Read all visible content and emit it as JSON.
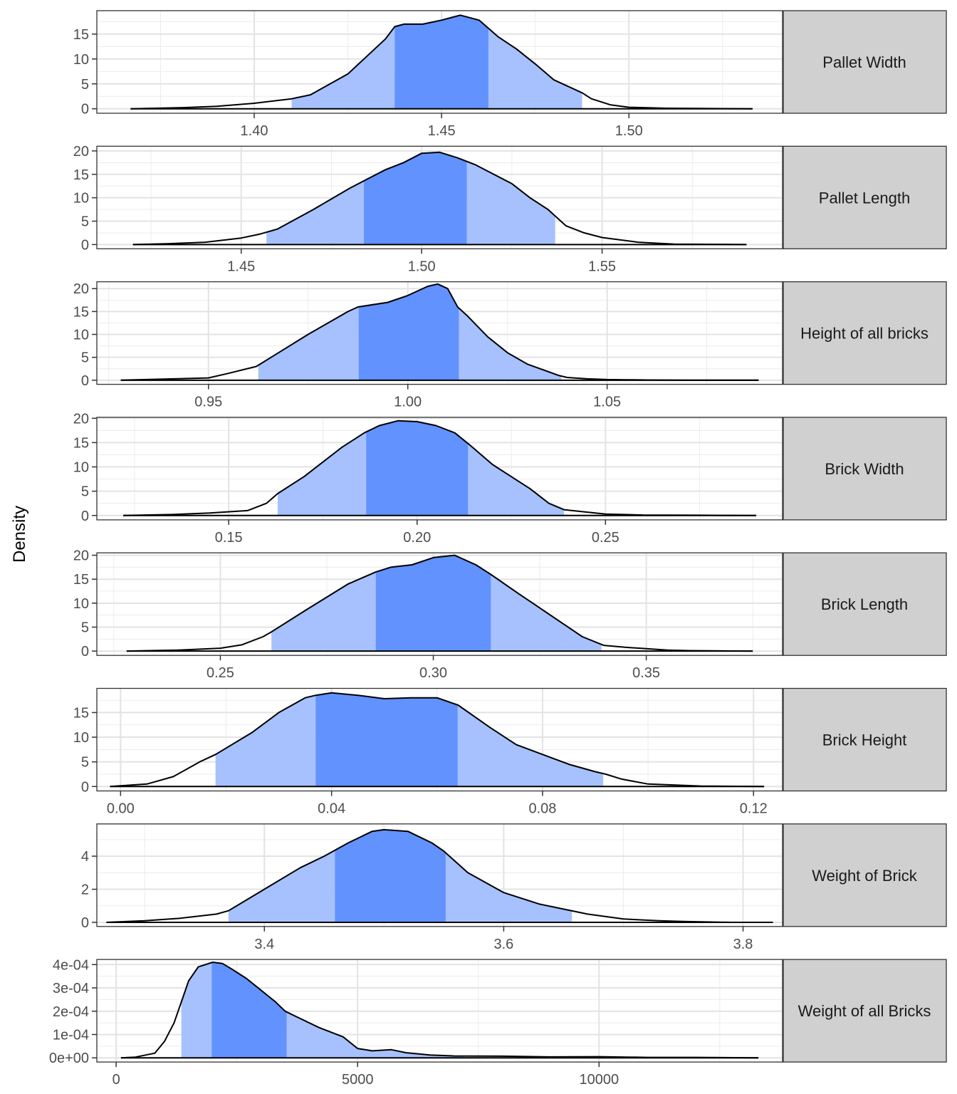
{
  "figure": {
    "ylabel": "Density"
  },
  "chart_data": [
    {
      "type": "area",
      "panel": "Pallet Width",
      "x": [
        1.367,
        1.38,
        1.39,
        1.4,
        1.41,
        1.415,
        1.425,
        1.43,
        1.435,
        1.4375,
        1.44,
        1.445,
        1.45,
        1.455,
        1.46,
        1.462,
        1.465,
        1.47,
        1.475,
        1.48,
        1.4875,
        1.49,
        1.495,
        1.5,
        1.51,
        1.533
      ],
      "y": [
        0.0,
        0.2,
        0.5,
        1.1,
        2.0,
        2.8,
        7.0,
        10.5,
        14.0,
        16.5,
        17.0,
        17.0,
        17.8,
        18.8,
        17.8,
        16.5,
        14.5,
        12.0,
        9.0,
        5.8,
        3.2,
        2.0,
        0.8,
        0.3,
        0.1,
        0.0
      ],
      "ci_outer": [
        1.41,
        1.4875
      ],
      "ci_inner": [
        1.4375,
        1.4625
      ],
      "xticks": [
        "1.40",
        "1.45",
        "1.50"
      ],
      "xlim": [
        1.358,
        1.541
      ],
      "yticks": [
        "0",
        "5",
        "10",
        "15"
      ],
      "ylim": [
        -0.9,
        19.7
      ]
    },
    {
      "type": "area",
      "panel": "Pallet Length",
      "x": [
        1.42,
        1.43,
        1.44,
        1.45,
        1.455,
        1.46,
        1.47,
        1.48,
        1.485,
        1.49,
        1.495,
        1.5,
        1.505,
        1.51,
        1.515,
        1.52,
        1.525,
        1.53,
        1.535,
        1.54,
        1.545,
        1.55,
        1.56,
        1.57,
        1.59
      ],
      "y": [
        0.0,
        0.2,
        0.5,
        1.4,
        2.2,
        3.3,
        7.5,
        12.0,
        14.0,
        16.0,
        17.5,
        19.5,
        19.7,
        18.5,
        17.0,
        15.0,
        13.0,
        10.0,
        7.5,
        4.0,
        2.5,
        1.5,
        0.5,
        0.1,
        0.0
      ],
      "ci_outer": [
        1.457,
        1.537
      ],
      "ci_inner": [
        1.484,
        1.5125
      ],
      "xticks": [
        "1.45",
        "1.50",
        "1.55"
      ],
      "xlim": [
        1.41,
        1.6
      ],
      "yticks": [
        "0",
        "5",
        "10",
        "15",
        "20"
      ],
      "ylim": [
        -0.9,
        21.0
      ]
    },
    {
      "type": "area",
      "panel": "Height of all bricks",
      "x": [
        0.928,
        0.95,
        0.955,
        0.962,
        0.975,
        0.985,
        0.9875,
        0.995,
        1.0,
        1.005,
        1.0075,
        1.01,
        1.0125,
        1.015,
        1.02,
        1.025,
        1.03,
        1.038,
        1.04,
        1.045,
        1.05,
        1.055,
        1.06,
        1.07,
        1.088
      ],
      "y": [
        0.0,
        0.5,
        1.5,
        3.0,
        10.0,
        15.0,
        16.0,
        17.0,
        18.5,
        20.5,
        21.0,
        20.0,
        16.0,
        14.0,
        9.5,
        6.0,
        3.5,
        1.0,
        0.6,
        0.3,
        0.15,
        0.1,
        0.05,
        0.0,
        0.0
      ],
      "ci_outer": [
        0.9625,
        1.0385
      ],
      "ci_inner": [
        0.9877,
        1.0128
      ],
      "xticks": [
        "0.95",
        "1.00",
        "1.05"
      ],
      "xlim": [
        0.922,
        1.094
      ],
      "yticks": [
        "0",
        "5",
        "10",
        "15",
        "20"
      ],
      "ylim": [
        -0.9,
        21.5
      ]
    },
    {
      "type": "area",
      "panel": "Brick Width",
      "x": [
        0.122,
        0.135,
        0.145,
        0.155,
        0.16,
        0.163,
        0.17,
        0.18,
        0.186,
        0.19,
        0.195,
        0.2,
        0.205,
        0.21,
        0.214,
        0.22,
        0.225,
        0.23,
        0.235,
        0.239,
        0.245,
        0.25,
        0.26,
        0.275,
        0.29
      ],
      "y": [
        0.0,
        0.2,
        0.5,
        1.0,
        2.5,
        4.5,
        8.0,
        14.0,
        17.0,
        18.5,
        19.5,
        19.3,
        18.5,
        17.0,
        14.5,
        10.5,
        8.0,
        5.5,
        2.5,
        1.2,
        0.7,
        0.3,
        0.1,
        0.05,
        0.0
      ],
      "ci_outer": [
        0.163,
        0.239
      ],
      "ci_inner": [
        0.1865,
        0.2135
      ],
      "xticks": [
        "0.15",
        "0.20",
        "0.25"
      ],
      "xlim": [
        0.115,
        0.297
      ],
      "yticks": [
        "0",
        "5",
        "10",
        "15",
        "20"
      ],
      "ylim": [
        -0.9,
        20.2
      ]
    },
    {
      "type": "area",
      "panel": "Brick Length",
      "x": [
        0.228,
        0.24,
        0.25,
        0.255,
        0.26,
        0.262,
        0.27,
        0.28,
        0.2865,
        0.29,
        0.295,
        0.3,
        0.305,
        0.31,
        0.3135,
        0.32,
        0.325,
        0.33,
        0.335,
        0.34,
        0.345,
        0.35,
        0.355,
        0.36,
        0.375
      ],
      "y": [
        0.0,
        0.2,
        0.6,
        1.3,
        3.0,
        4.0,
        8.5,
        14.0,
        16.5,
        17.5,
        18.0,
        19.5,
        20.0,
        18.0,
        16.0,
        12.0,
        9.0,
        6.0,
        3.0,
        1.2,
        0.8,
        0.5,
        0.2,
        0.1,
        0.0
      ],
      "ci_outer": [
        0.262,
        0.3395
      ],
      "ci_inner": [
        0.2865,
        0.3135
      ],
      "xticks": [
        "0.25",
        "0.30",
        "0.35"
      ],
      "xlim": [
        0.221,
        0.382
      ],
      "yticks": [
        "0",
        "5",
        "10",
        "15",
        "20"
      ],
      "ylim": [
        -0.9,
        20.5
      ]
    },
    {
      "type": "area",
      "panel": "Brick Height",
      "x": [
        -0.002,
        0.005,
        0.01,
        0.015,
        0.018,
        0.025,
        0.03,
        0.035,
        0.037,
        0.04,
        0.045,
        0.05,
        0.055,
        0.06,
        0.064,
        0.07,
        0.075,
        0.08,
        0.085,
        0.09,
        0.092,
        0.095,
        0.1,
        0.11,
        0.122
      ],
      "y": [
        0.0,
        0.5,
        2.0,
        5.0,
        6.5,
        11.0,
        15.0,
        18.0,
        18.5,
        19.0,
        18.5,
        17.8,
        18.0,
        18.0,
        16.5,
        12.0,
        8.5,
        6.5,
        4.5,
        3.0,
        2.5,
        1.5,
        0.5,
        0.1,
        0.0
      ],
      "ci_outer": [
        0.018,
        0.0915
      ],
      "ci_inner": [
        0.037,
        0.0639
      ],
      "xticks": [
        "0.00",
        "0.04",
        "0.08",
        "0.12"
      ],
      "xlim": [
        -0.0045,
        0.1255
      ],
      "yticks": [
        "0",
        "5",
        "10",
        "15"
      ],
      "ylim": [
        -0.9,
        19.9
      ]
    },
    {
      "type": "area",
      "panel": "Weight of Brick",
      "x": [
        3.268,
        3.3,
        3.33,
        3.36,
        3.37,
        3.4,
        3.43,
        3.45,
        3.47,
        3.49,
        3.5,
        3.52,
        3.54,
        3.55,
        3.57,
        3.6,
        3.63,
        3.65,
        3.67,
        3.7,
        3.73,
        3.75,
        3.79,
        3.825
      ],
      "y": [
        0.0,
        0.1,
        0.25,
        0.5,
        0.7,
        2.0,
        3.3,
        4.0,
        4.8,
        5.5,
        5.6,
        5.5,
        4.8,
        4.3,
        3.0,
        1.8,
        1.1,
        0.8,
        0.5,
        0.2,
        0.1,
        0.05,
        0.0,
        0.0
      ],
      "ci_outer": [
        3.37,
        3.657
      ],
      "ci_inner": [
        3.459,
        3.5515
      ],
      "xticks": [
        "3.4",
        "3.6",
        "3.8"
      ],
      "xlim": [
        3.26,
        3.833
      ],
      "yticks": [
        "0",
        "2",
        "4"
      ],
      "ylim": [
        -0.25,
        5.95
      ]
    },
    {
      "type": "area",
      "panel": "Weight of all Bricks",
      "x": [
        100,
        400,
        800,
        1000,
        1200,
        1350,
        1500,
        1700,
        2000,
        2200,
        2400,
        2700,
        3000,
        3300,
        3500,
        3800,
        4200,
        4700,
        5000,
        5300,
        5700,
        6000,
        6500,
        7000,
        8000,
        9000,
        10000,
        11000,
        12000,
        13300
      ],
      "y": [
        0.0,
        3e-06,
        2e-05,
        7e-05,
        0.00015,
        0.00024,
        0.00033,
        0.00039,
        0.00041,
        0.000405,
        0.00038,
        0.00034,
        0.00029,
        0.00024,
        0.0002,
        0.00017,
        0.00013,
        9e-05,
        4e-05,
        3e-05,
        3.5e-05,
        2.2e-05,
        1.2e-05,
        8e-06,
        7e-06,
        4e-06,
        5e-06,
        2e-06,
        2e-06,
        0.0
      ],
      "ci_outer": [
        1350,
        7200
      ],
      "ci_inner": [
        1980,
        3530
      ],
      "xticks": [
        "0",
        "5000",
        "10000"
      ],
      "xlim": [
        -400,
        13800
      ],
      "yticks": [
        "0e+00",
        "1e-04",
        "2e-04",
        "3e-04",
        "4e-04"
      ],
      "ylim": [
        -1.8e-05,
        0.000422
      ]
    }
  ]
}
